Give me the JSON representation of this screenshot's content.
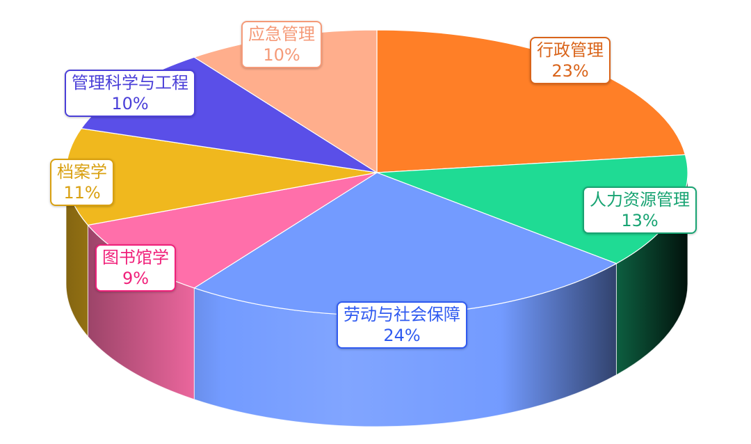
{
  "chart_data": {
    "type": "pie",
    "style": "3d",
    "start": "top, clockwise",
    "title": "",
    "slices": [
      {
        "label": "行政管理",
        "value": 23,
        "value_label": "23%",
        "color": "#FF7F27",
        "text_color": "#D9641A"
      },
      {
        "label": "人力资源管理",
        "value": 13,
        "value_label": "13%",
        "color": "#1FDB94",
        "text_color": "#17A372"
      },
      {
        "label": "劳动与社会保障",
        "value": 24,
        "value_label": "24%",
        "color": "#739BFF",
        "text_color": "#2F5AF0"
      },
      {
        "label": "图书馆学",
        "value": 9,
        "value_label": "9%",
        "color": "#FF6FAA",
        "text_color": "#F0207A"
      },
      {
        "label": "档案学",
        "value": 11,
        "value_label": "11%",
        "color": "#F0B81E",
        "text_color": "#D9A010"
      },
      {
        "label": "管理科学与工程",
        "value": 10,
        "value_label": "10%",
        "color": "#5A4FE8",
        "text_color": "#4A3FD8"
      },
      {
        "label": "应急管理",
        "value": 10,
        "value_label": "10%",
        "color": "#FFAE8C",
        "text_color": "#F59A78"
      }
    ]
  }
}
